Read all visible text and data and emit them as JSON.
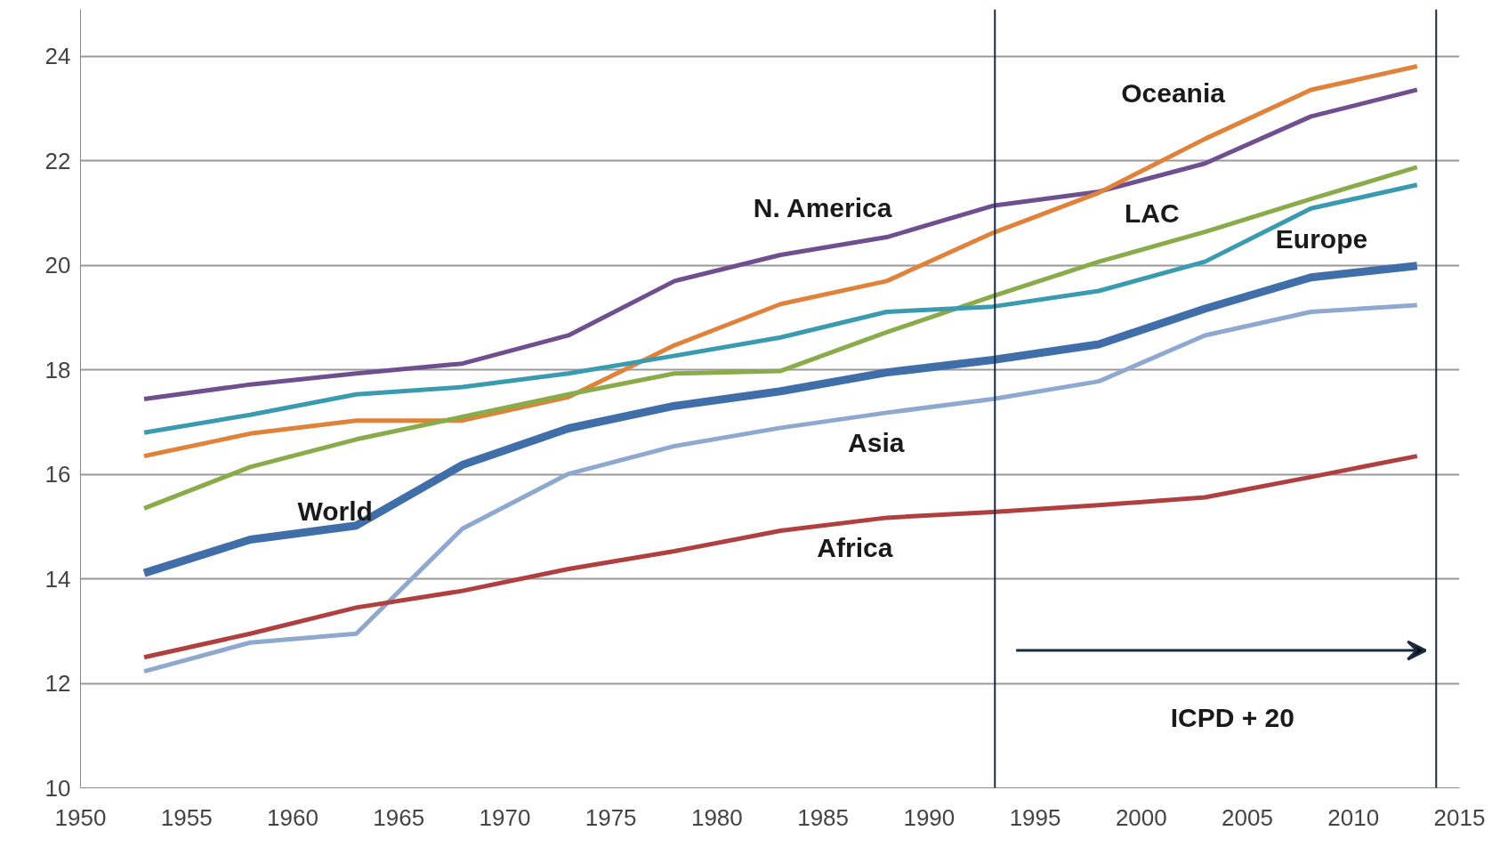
{
  "chart_data": {
    "type": "line",
    "x": [
      1953,
      1958,
      1963,
      1968,
      1973,
      1978,
      1983,
      1988,
      1993,
      1998,
      2003,
      2008,
      2013
    ],
    "series": [
      {
        "name": "N. America",
        "color": "#6f4f8f",
        "values": [
          17.44,
          17.72,
          17.93,
          18.12,
          18.66,
          19.7,
          20.2,
          20.54,
          21.14,
          21.41,
          21.95,
          22.85,
          23.36
        ]
      },
      {
        "name": "Oceania",
        "color": "#e0823a",
        "values": [
          16.35,
          16.78,
          17.03,
          17.03,
          17.48,
          18.47,
          19.26,
          19.7,
          20.62,
          21.39,
          22.42,
          23.36,
          23.81
        ]
      },
      {
        "name": "LAC",
        "color": "#8aab4a",
        "values": [
          15.35,
          16.14,
          16.67,
          17.1,
          17.53,
          17.93,
          17.98,
          18.72,
          19.41,
          20.07,
          20.64,
          21.27,
          21.88
        ]
      },
      {
        "name": "Europe",
        "color": "#3a9bb0",
        "values": [
          16.8,
          17.14,
          17.53,
          17.67,
          17.93,
          18.27,
          18.62,
          19.11,
          19.21,
          19.51,
          20.07,
          21.09,
          21.54
        ]
      },
      {
        "name": "World",
        "color": "#3f6ea8",
        "values": [
          14.11,
          14.75,
          15.02,
          16.18,
          16.88,
          17.31,
          17.59,
          17.95,
          18.19,
          18.49,
          19.17,
          19.77,
          19.99
        ]
      },
      {
        "name": "Asia",
        "color": "#8ea8d0",
        "values": [
          12.23,
          12.78,
          12.95,
          14.96,
          16.01,
          16.54,
          16.89,
          17.18,
          17.44,
          17.78,
          18.66,
          19.11,
          19.24
        ]
      },
      {
        "name": "Africa",
        "color": "#b04040",
        "values": [
          12.5,
          12.95,
          13.45,
          13.77,
          14.19,
          14.53,
          14.92,
          15.17,
          15.28,
          15.41,
          15.56,
          15.95,
          16.35
        ]
      }
    ],
    "xlim": [
      1950,
      2015
    ],
    "xticks": [
      1950,
      1955,
      1960,
      1965,
      1970,
      1975,
      1980,
      1985,
      1990,
      1995,
      2000,
      2005,
      2010,
      2015
    ],
    "ylim": [
      10,
      24.9
    ],
    "yticks": [
      10,
      12,
      14,
      16,
      18,
      20,
      22,
      24
    ],
    "grid": "y",
    "legend": false,
    "marker": "none",
    "line_style": "solid",
    "ref_lines": [
      {
        "axis": "x",
        "value": 1993.1,
        "label": null,
        "color": "#1a2a40"
      },
      {
        "axis": "x",
        "value": 2013.9,
        "label": null,
        "color": "#1a2a40"
      }
    ],
    "annotations": [
      "ICPD + 20"
    ]
  }
}
